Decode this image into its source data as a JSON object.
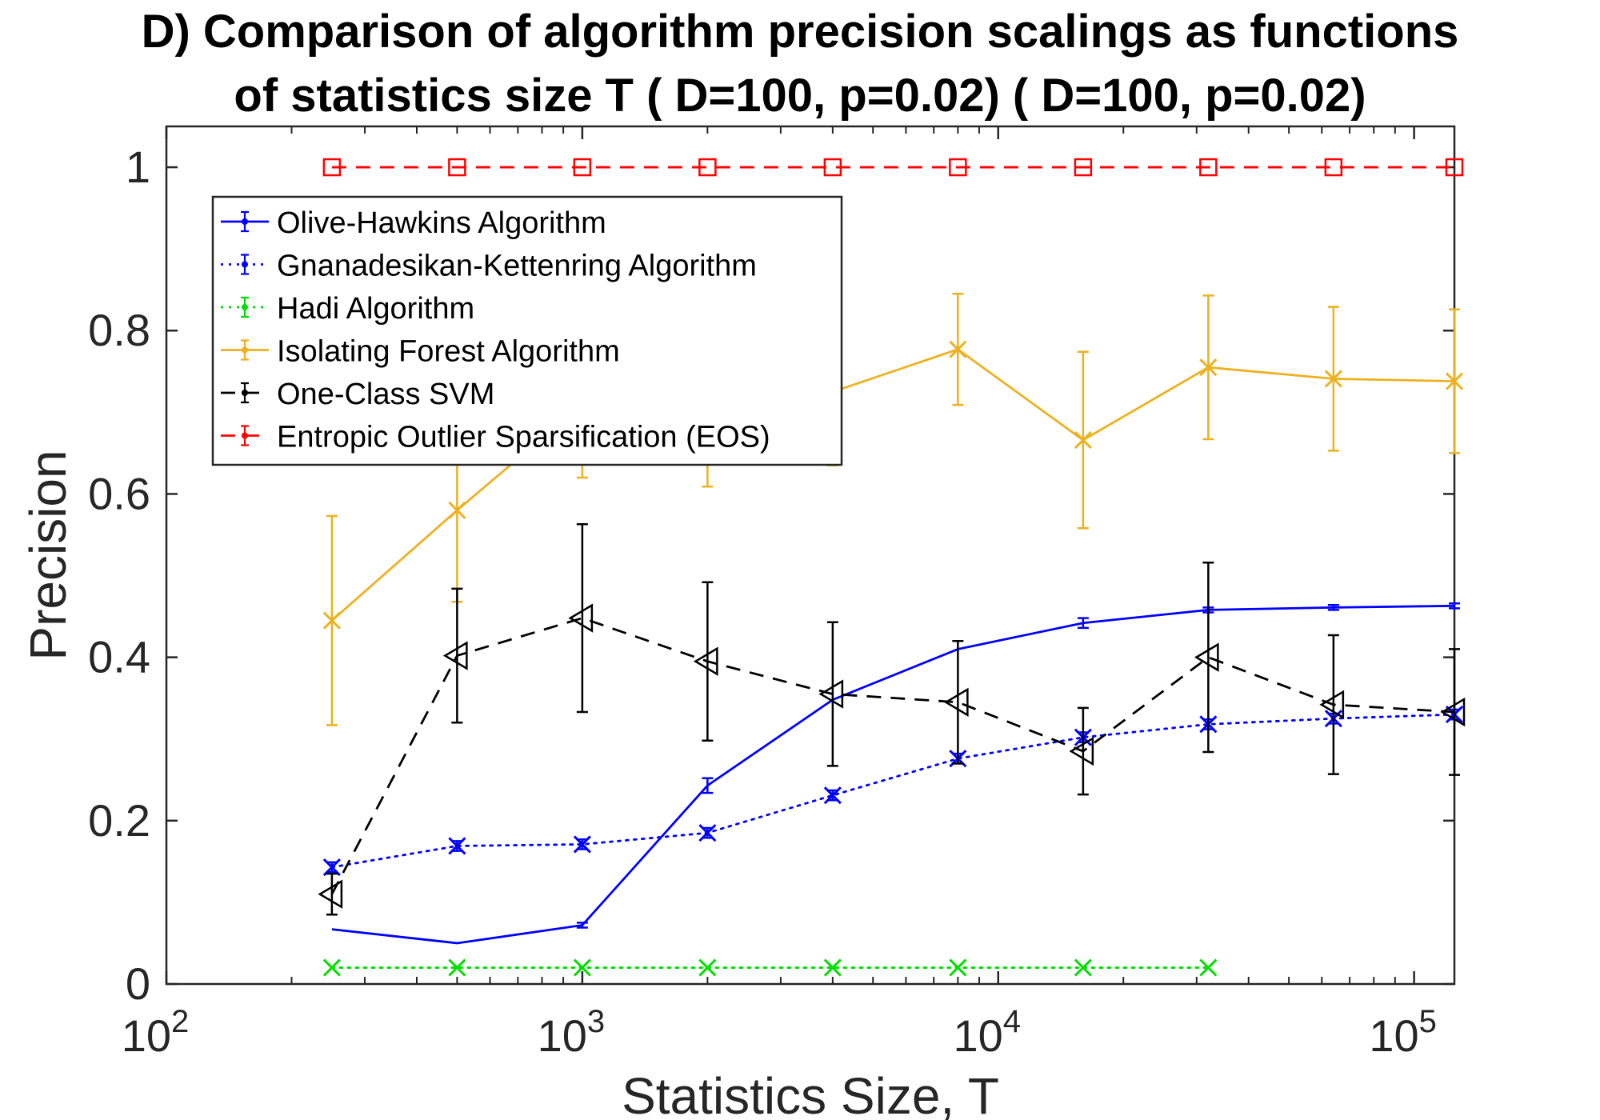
{
  "chart_data": {
    "type": "line",
    "title_lines": [
      "D) Comparison of algorithm precision scalings as functions",
      "of statistics size T ( D=100, p=0.02) ( D=100, p=0.02)"
    ],
    "xlabel": "Statistics Size, T",
    "ylabel": "Precision",
    "x_scale": "log",
    "xlim": [
      100,
      125000
    ],
    "ylim": [
      0,
      1.05
    ],
    "x_ticks": [
      {
        "value": 100,
        "base": "10",
        "exp": "2"
      },
      {
        "value": 1000,
        "base": "10",
        "exp": "3"
      },
      {
        "value": 10000,
        "base": "10",
        "exp": "4"
      },
      {
        "value": 100000,
        "base": "10",
        "exp": "5"
      }
    ],
    "y_ticks": [
      {
        "value": 0,
        "label": "0"
      },
      {
        "value": 0.2,
        "label": "0.2"
      },
      {
        "value": 0.4,
        "label": "0.4"
      },
      {
        "value": 0.6,
        "label": "0.6"
      },
      {
        "value": 0.8,
        "label": "0.8"
      },
      {
        "value": 1,
        "label": "1"
      }
    ],
    "grid": false,
    "legend_position": "top-left",
    "series": [
      {
        "name": "Olive-Hawkins Algorithm",
        "color": "#0000ff",
        "dash": "solid",
        "marker": "none",
        "x": [
          250,
          500,
          1000,
          2000,
          4000,
          8000,
          16000,
          32000,
          64000,
          125000
        ],
        "y": [
          0.067,
          0.05,
          0.072,
          0.243,
          0.348,
          0.41,
          0.442,
          0.458,
          0.461,
          0.463
        ],
        "err": [
          0.0,
          0.0,
          0.003,
          0.009,
          0.0,
          0.0,
          0.006,
          0.003,
          0.003,
          0.003
        ]
      },
      {
        "name": "Gnanadesikan-Kettenring Algorithm",
        "color": "#0000ff",
        "dash": "dotted",
        "marker": "x",
        "x": [
          250,
          500,
          1000,
          2000,
          4000,
          8000,
          16000,
          32000,
          64000,
          125000
        ],
        "y": [
          0.143,
          0.169,
          0.171,
          0.185,
          0.231,
          0.276,
          0.302,
          0.318,
          0.325,
          0.33
        ],
        "err": [
          0.006,
          0.006,
          0.006,
          0.006,
          0.006,
          0.006,
          0.006,
          0.006,
          0.006,
          0.006
        ]
      },
      {
        "name": "Hadi Algorithm",
        "color": "#00dd00",
        "dash": "dotted",
        "marker": "x",
        "x": [
          250,
          500,
          1000,
          2000,
          4000,
          8000,
          16000,
          32000
        ],
        "y": [
          0.02,
          0.02,
          0.02,
          0.02,
          0.02,
          0.02,
          0.02,
          0.02
        ],
        "err": [
          0,
          0,
          0,
          0,
          0,
          0,
          0,
          0
        ]
      },
      {
        "name": "Isolating Forest Algorithm",
        "color": "#edb120",
        "dash": "solid",
        "marker": "x",
        "x": [
          250,
          500,
          1000,
          2000,
          4000,
          8000,
          16000,
          32000,
          64000,
          125000
        ],
        "y": [
          0.445,
          0.58,
          0.71,
          0.695,
          0.725,
          0.777,
          0.666,
          0.755,
          0.741,
          0.738
        ],
        "err": [
          0.128,
          0.112,
          0.09,
          0.086,
          0.09,
          0.068,
          0.108,
          0.088,
          0.088,
          0.088
        ]
      },
      {
        "name": "One-Class SVM",
        "color": "#000000",
        "dash": "dashed",
        "marker": "triangle-left",
        "x": [
          250,
          500,
          1000,
          2000,
          4000,
          8000,
          16000,
          32000,
          64000,
          125000
        ],
        "y": [
          0.11,
          0.402,
          0.448,
          0.395,
          0.355,
          0.345,
          0.285,
          0.4,
          0.342,
          0.333
        ],
        "err": [
          0.025,
          0.082,
          0.115,
          0.097,
          0.088,
          0.075,
          0.053,
          0.116,
          0.085,
          0.077
        ]
      },
      {
        "name": "Entropic Outlier Sparsification (EOS)",
        "color": "#ff0000",
        "dash": "dashed",
        "marker": "square",
        "x": [
          250,
          500,
          1000,
          2000,
          4000,
          8000,
          16000,
          32000,
          64000,
          125000
        ],
        "y": [
          1,
          1,
          1,
          1,
          1,
          1,
          1,
          1,
          1,
          1
        ],
        "err": [
          0,
          0,
          0,
          0,
          0,
          0,
          0,
          0,
          0,
          0
        ]
      }
    ]
  }
}
